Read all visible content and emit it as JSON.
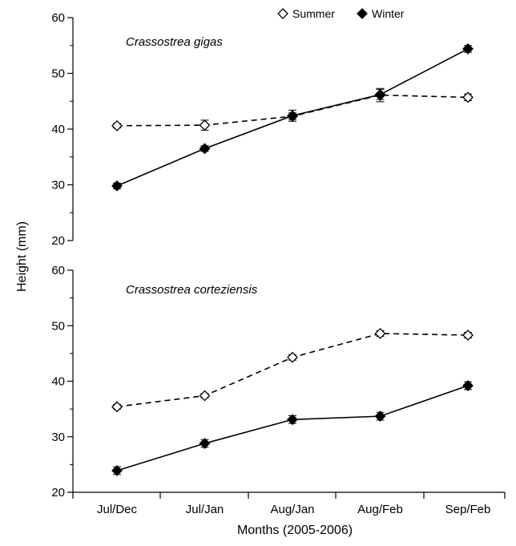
{
  "chart_data": {
    "type": "line",
    "xlabel": "Months (2005-2006)",
    "ylabel": "Height (mm)",
    "categories": [
      "Jul/Dec",
      "Jul/Jan",
      "Aug/Jan",
      "Aug/Feb",
      "Sep/Feb"
    ],
    "legend": {
      "placement": "top-center",
      "entries": [
        {
          "name": "Summer",
          "marker": "open-diamond",
          "line": "dashed"
        },
        {
          "name": "Winter",
          "marker": "filled-diamond",
          "line": "solid"
        }
      ]
    },
    "panels": [
      {
        "title": "Crassostrea gigas",
        "ylim": [
          20,
          60
        ],
        "yticks": [
          "20",
          "30",
          "40",
          "50",
          "60"
        ],
        "series": [
          {
            "name": "Summer",
            "values": [
              40.6,
              40.7,
              42.3,
              46.1,
              45.7
            ],
            "errors": [
              0.4,
              0.9,
              0.6,
              1.2,
              0.6
            ]
          },
          {
            "name": "Winter",
            "values": [
              29.8,
              36.5,
              42.4,
              46.2,
              54.4
            ],
            "errors": [
              0.5,
              0.5,
              1.0,
              0.9,
              0.6
            ]
          }
        ]
      },
      {
        "title": "Crassostrea corteziensis",
        "ylim": [
          20,
          60
        ],
        "yticks": [
          "20",
          "30",
          "40",
          "50",
          "60"
        ],
        "series": [
          {
            "name": "Summer",
            "values": [
              35.4,
              37.4,
              44.3,
              48.6,
              48.3
            ],
            "errors": [
              0.4,
              0.4,
              0.5,
              0.5,
              0.5
            ]
          },
          {
            "name": "Winter",
            "values": [
              23.9,
              28.8,
              33.1,
              33.7,
              39.2
            ],
            "errors": [
              0.7,
              0.7,
              0.7,
              0.7,
              0.7
            ]
          }
        ]
      }
    ],
    "colors": {
      "line": "#000000",
      "open_fill": "#ffffff",
      "filled_fill": "#000000"
    }
  }
}
